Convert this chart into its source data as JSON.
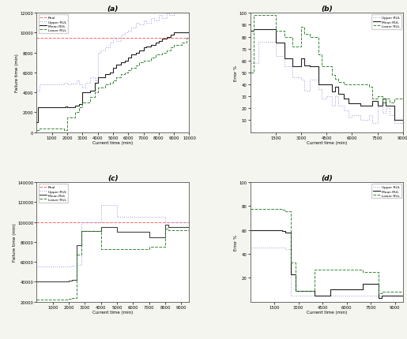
{
  "fig_width": 5.15,
  "fig_height": 4.31,
  "dpi": 100,
  "subplot_a": {
    "title": "(a)",
    "xlabel": "Current time (min)",
    "ylabel": "Failure time (min)",
    "xlim": [
      0,
      10000
    ],
    "ylim": [
      0,
      12000
    ],
    "yticks": [
      0,
      2000,
      4000,
      6000,
      8000,
      10000,
      12000
    ],
    "xticks": [
      1000,
      2000,
      3000,
      4000,
      5000,
      6000,
      7000,
      8000,
      9000,
      10000
    ],
    "real_y": 9500,
    "real_color": "#ff6666",
    "upper_color": "#9999dd",
    "mean_color": "#222222",
    "lower_color": "#338833",
    "upper_x": [
      0,
      200,
      200,
      1800,
      1800,
      2000,
      2000,
      2200,
      2200,
      2600,
      2600,
      2800,
      2800,
      3000,
      3000,
      3200,
      3200,
      3500,
      3500,
      3800,
      3800,
      4000,
      4000,
      4200,
      4200,
      4500,
      4500,
      4800,
      4800,
      5000,
      5000,
      5200,
      5200,
      5500,
      5500,
      5800,
      5800,
      6000,
      6000,
      6200,
      6200,
      6500,
      6500,
      6700,
      6700,
      7000,
      7000,
      7200,
      7200,
      7500,
      7500,
      7700,
      7700,
      8000,
      8000,
      8200,
      8200,
      8500,
      8500,
      8700,
      8700,
      9000,
      9000,
      9200,
      9200,
      9500,
      9500,
      9800,
      9800,
      10000
    ],
    "upper_y": [
      4200,
      4200,
      4800,
      4800,
      5000,
      5000,
      4800,
      4800,
      4900,
      4900,
      5200,
      5200,
      4800,
      4800,
      4500,
      4500,
      5000,
      5000,
      5500,
      5500,
      5200,
      5200,
      8000,
      8000,
      8200,
      8200,
      8500,
      8500,
      9000,
      9000,
      9500,
      9500,
      9200,
      9200,
      9800,
      9800,
      10000,
      10000,
      10200,
      10200,
      10500,
      10500,
      11000,
      11000,
      10800,
      10800,
      11200,
      11200,
      11000,
      11000,
      11500,
      11500,
      11200,
      11200,
      11800,
      11800,
      11500,
      11500,
      12000,
      12000,
      11800,
      11800,
      12000,
      12000,
      12000,
      12000,
      12000,
      12000,
      12000,
      12000
    ],
    "mean_x": [
      0,
      100,
      100,
      1900,
      1900,
      2000,
      2000,
      2500,
      2500,
      2800,
      2800,
      3000,
      3000,
      3500,
      3500,
      3800,
      3800,
      4000,
      4000,
      4500,
      4500,
      4800,
      4800,
      5000,
      5000,
      5200,
      5200,
      5500,
      5500,
      5800,
      5800,
      6000,
      6000,
      6200,
      6200,
      6500,
      6500,
      6700,
      6700,
      7000,
      7000,
      7200,
      7200,
      7500,
      7500,
      7800,
      7800,
      8000,
      8000,
      8200,
      8200,
      8500,
      8500,
      8800,
      8800,
      9000,
      9000,
      9500,
      9500,
      10000
    ],
    "mean_y": [
      1000,
      1000,
      2500,
      2500,
      2600,
      2600,
      2500,
      2500,
      2700,
      2700,
      2800,
      2800,
      4000,
      4000,
      4200,
      4200,
      5000,
      5000,
      5500,
      5500,
      5800,
      5800,
      6000,
      6000,
      6500,
      6500,
      6800,
      6800,
      7000,
      7000,
      7200,
      7200,
      7500,
      7500,
      7800,
      7800,
      8000,
      8000,
      8200,
      8200,
      8500,
      8500,
      8600,
      8600,
      8800,
      8800,
      9000,
      9000,
      9200,
      9200,
      9400,
      9400,
      9600,
      9600,
      9800,
      9800,
      10000,
      10000,
      10000,
      10000
    ],
    "lower_x": [
      0,
      200,
      200,
      1800,
      1800,
      2000,
      2000,
      2500,
      2500,
      2800,
      2800,
      3000,
      3000,
      3500,
      3500,
      3800,
      3800,
      4000,
      4000,
      4500,
      4500,
      4800,
      4800,
      5000,
      5000,
      5200,
      5200,
      5500,
      5500,
      5800,
      5800,
      6000,
      6000,
      6200,
      6200,
      6500,
      6500,
      6700,
      6700,
      7000,
      7000,
      7500,
      7500,
      7800,
      7800,
      8200,
      8200,
      8500,
      8500,
      8800,
      8800,
      9000,
      9000,
      9500,
      9500,
      9800,
      9800,
      10000
    ],
    "lower_y": [
      200,
      200,
      400,
      400,
      200,
      200,
      1500,
      1500,
      2000,
      2000,
      2500,
      2500,
      3000,
      3000,
      3500,
      3500,
      4000,
      4000,
      4500,
      4500,
      4800,
      4800,
      5000,
      5000,
      5200,
      5200,
      5500,
      5500,
      5800,
      5800,
      6000,
      6000,
      6200,
      6200,
      6500,
      6500,
      6700,
      6700,
      7000,
      7000,
      7200,
      7200,
      7500,
      7500,
      7800,
      7800,
      8000,
      8000,
      8200,
      8200,
      8500,
      8500,
      8800,
      8800,
      9000,
      9000,
      9500,
      9500
    ]
  },
  "subplot_b": {
    "title": "(b)",
    "xlabel": "Current time (min)",
    "ylabel": "Error %",
    "xlim": [
      0,
      9000
    ],
    "ylim": [
      0,
      100
    ],
    "yticks": [
      10,
      20,
      30,
      40,
      50,
      60,
      70,
      80,
      90,
      100
    ],
    "xticks": [
      1500,
      3000,
      4500,
      6000,
      7500,
      9000
    ],
    "upper_color": "#9999dd",
    "mean_color": "#222222",
    "lower_color": "#338833",
    "upper_x": [
      0,
      500,
      500,
      1500,
      1500,
      2000,
      2000,
      2500,
      2500,
      3000,
      3000,
      3200,
      3200,
      3500,
      3500,
      4000,
      4000,
      4200,
      4200,
      4500,
      4500,
      4800,
      4800,
      5000,
      5000,
      5200,
      5200,
      5500,
      5500,
      5800,
      5800,
      6000,
      6000,
      6500,
      6500,
      7000,
      7000,
      7200,
      7200,
      7500,
      7500,
      7800,
      7800,
      8000,
      8000,
      8200,
      8200,
      8500,
      8500,
      9000
    ],
    "upper_y": [
      58,
      58,
      76,
      76,
      64,
      64,
      55,
      55,
      46,
      46,
      44,
      44,
      35,
      35,
      44,
      44,
      36,
      36,
      28,
      28,
      30,
      30,
      22,
      22,
      30,
      30,
      22,
      22,
      18,
      18,
      12,
      12,
      14,
      14,
      10,
      10,
      14,
      14,
      8,
      8,
      22,
      22,
      16,
      16,
      20,
      20,
      14,
      14,
      8,
      8
    ],
    "mean_x": [
      0,
      200,
      200,
      1500,
      1500,
      2000,
      2000,
      2500,
      2500,
      3000,
      3000,
      3200,
      3200,
      3500,
      3500,
      4000,
      4000,
      4200,
      4200,
      4500,
      4500,
      4800,
      4800,
      5000,
      5000,
      5200,
      5200,
      5500,
      5500,
      5800,
      5800,
      6000,
      6000,
      6200,
      6200,
      6500,
      6500,
      7000,
      7000,
      7200,
      7200,
      7500,
      7500,
      7800,
      7800,
      8000,
      8000,
      8500,
      8500,
      9000
    ],
    "mean_y": [
      85,
      85,
      86,
      86,
      75,
      75,
      62,
      62,
      55,
      55,
      62,
      62,
      56,
      56,
      55,
      55,
      40,
      40,
      40,
      40,
      40,
      40,
      34,
      34,
      38,
      38,
      32,
      32,
      28,
      28,
      24,
      24,
      24,
      24,
      24,
      24,
      22,
      22,
      22,
      22,
      26,
      26,
      22,
      22,
      28,
      28,
      22,
      22,
      10,
      10
    ],
    "lower_x": [
      0,
      200,
      200,
      1500,
      1500,
      2000,
      2000,
      2500,
      2500,
      3000,
      3000,
      3200,
      3200,
      3500,
      3500,
      4000,
      4000,
      4200,
      4200,
      4500,
      4500,
      4800,
      4800,
      5000,
      5000,
      5200,
      5200,
      5500,
      5500,
      5800,
      5800,
      6000,
      6000,
      6500,
      6500,
      7000,
      7000,
      7200,
      7200,
      7500,
      7500,
      7800,
      7800,
      8000,
      8000,
      8200,
      8200,
      8500,
      8500,
      9000
    ],
    "lower_y": [
      50,
      50,
      98,
      98,
      85,
      85,
      80,
      80,
      72,
      72,
      88,
      88,
      82,
      82,
      80,
      80,
      65,
      65,
      55,
      55,
      55,
      55,
      48,
      48,
      45,
      45,
      42,
      42,
      40,
      40,
      40,
      40,
      40,
      40,
      40,
      40,
      38,
      38,
      28,
      28,
      30,
      30,
      25,
      25,
      28,
      28,
      25,
      25,
      28,
      28
    ]
  },
  "subplot_c": {
    "title": "(c)",
    "xlabel": "Current time (min)",
    "ylabel": "Failure time (min)",
    "xlim": [
      0,
      9500
    ],
    "ylim": [
      20000,
      140000
    ],
    "yticks": [
      20000,
      40000,
      60000,
      80000,
      100000,
      120000,
      140000
    ],
    "xticks": [
      1000,
      2000,
      3000,
      4000,
      5000,
      6000,
      7000,
      8000,
      9000
    ],
    "real_y": 100000,
    "real_color": "#ff6666",
    "upper_color": "#9999dd",
    "mean_color": "#444444",
    "lower_color": "#338833",
    "upper_x": [
      0,
      2000,
      2000,
      2200,
      2200,
      2500,
      2500,
      2800,
      2800,
      3500,
      3500,
      4000,
      4000,
      5000,
      5000,
      7000,
      7000,
      8000,
      8000,
      8200,
      8200,
      8500,
      8500,
      9500
    ],
    "upper_y": [
      55000,
      55000,
      55000,
      55000,
      56000,
      56000,
      57000,
      57000,
      100000,
      100000,
      100000,
      100000,
      117000,
      117000,
      105000,
      105000,
      105000,
      105000,
      100000,
      100000,
      100000,
      100000,
      100000,
      100000
    ],
    "mean_x": [
      0,
      2000,
      2000,
      2200,
      2200,
      2500,
      2500,
      2800,
      2800,
      3500,
      3500,
      4000,
      4000,
      5000,
      5000,
      7000,
      7000,
      8000,
      8000,
      8200,
      8200,
      8500,
      8500,
      9500
    ],
    "mean_y": [
      40000,
      40000,
      41000,
      41000,
      42000,
      42000,
      77000,
      77000,
      91000,
      91000,
      91000,
      91000,
      95000,
      95000,
      90000,
      90000,
      85000,
      85000,
      97000,
      97000,
      95000,
      95000,
      95000,
      95000
    ],
    "lower_x": [
      0,
      2000,
      2000,
      2200,
      2200,
      2500,
      2500,
      2800,
      2800,
      3500,
      3500,
      4000,
      4000,
      5000,
      5000,
      7000,
      7000,
      8000,
      8000,
      8200,
      8200,
      8500,
      8500,
      9500
    ],
    "lower_y": [
      22000,
      22000,
      23000,
      23000,
      24000,
      24000,
      67000,
      67000,
      91000,
      91000,
      91000,
      91000,
      73000,
      73000,
      73000,
      73000,
      75000,
      75000,
      93000,
      93000,
      92000,
      92000,
      92000,
      92000
    ]
  },
  "subplot_d": {
    "title": "(d)",
    "xlabel": "Current time (min)",
    "ylabel": "Error %",
    "xlim": [
      0,
      9500
    ],
    "ylim": [
      0,
      100
    ],
    "yticks": [
      20,
      40,
      60,
      80,
      100
    ],
    "xticks": [
      1500,
      3000,
      4500,
      6000,
      7500,
      9000
    ],
    "upper_color": "#9999dd",
    "mean_color": "#222222",
    "lower_color": "#338833",
    "upper_x": [
      0,
      2000,
      2000,
      2200,
      2200,
      2500,
      2500,
      2800,
      2800,
      3500,
      3500,
      4000,
      4000,
      5000,
      5000,
      7000,
      7000,
      8000,
      8000,
      8200,
      8200,
      8500,
      8500,
      9500
    ],
    "upper_y": [
      45,
      45,
      45,
      45,
      44,
      44,
      5,
      5,
      5,
      5,
      5,
      5,
      5,
      5,
      5,
      5,
      5,
      5,
      5,
      5,
      5,
      5,
      5,
      5
    ],
    "mean_x": [
      0,
      2000,
      2000,
      2200,
      2200,
      2500,
      2500,
      2800,
      2800,
      3500,
      3500,
      4000,
      4000,
      5000,
      5000,
      7000,
      7000,
      8000,
      8000,
      8200,
      8200,
      8500,
      8500,
      9500
    ],
    "mean_y": [
      60,
      60,
      59,
      59,
      58,
      58,
      23,
      23,
      9,
      9,
      9,
      9,
      5,
      5,
      10,
      10,
      15,
      15,
      3,
      3,
      5,
      5,
      5,
      5
    ],
    "lower_x": [
      0,
      2000,
      2000,
      2200,
      2200,
      2500,
      2500,
      2800,
      2800,
      3500,
      3500,
      4000,
      4000,
      5000,
      5000,
      7000,
      7000,
      8000,
      8000,
      8200,
      8200,
      8500,
      8500,
      9500
    ],
    "lower_y": [
      78,
      78,
      77,
      77,
      76,
      76,
      33,
      33,
      9,
      9,
      9,
      9,
      27,
      27,
      27,
      27,
      25,
      25,
      7,
      7,
      8,
      8,
      8,
      8
    ]
  },
  "bg_color": "#f5f5f0",
  "face_color": "#ffffff"
}
